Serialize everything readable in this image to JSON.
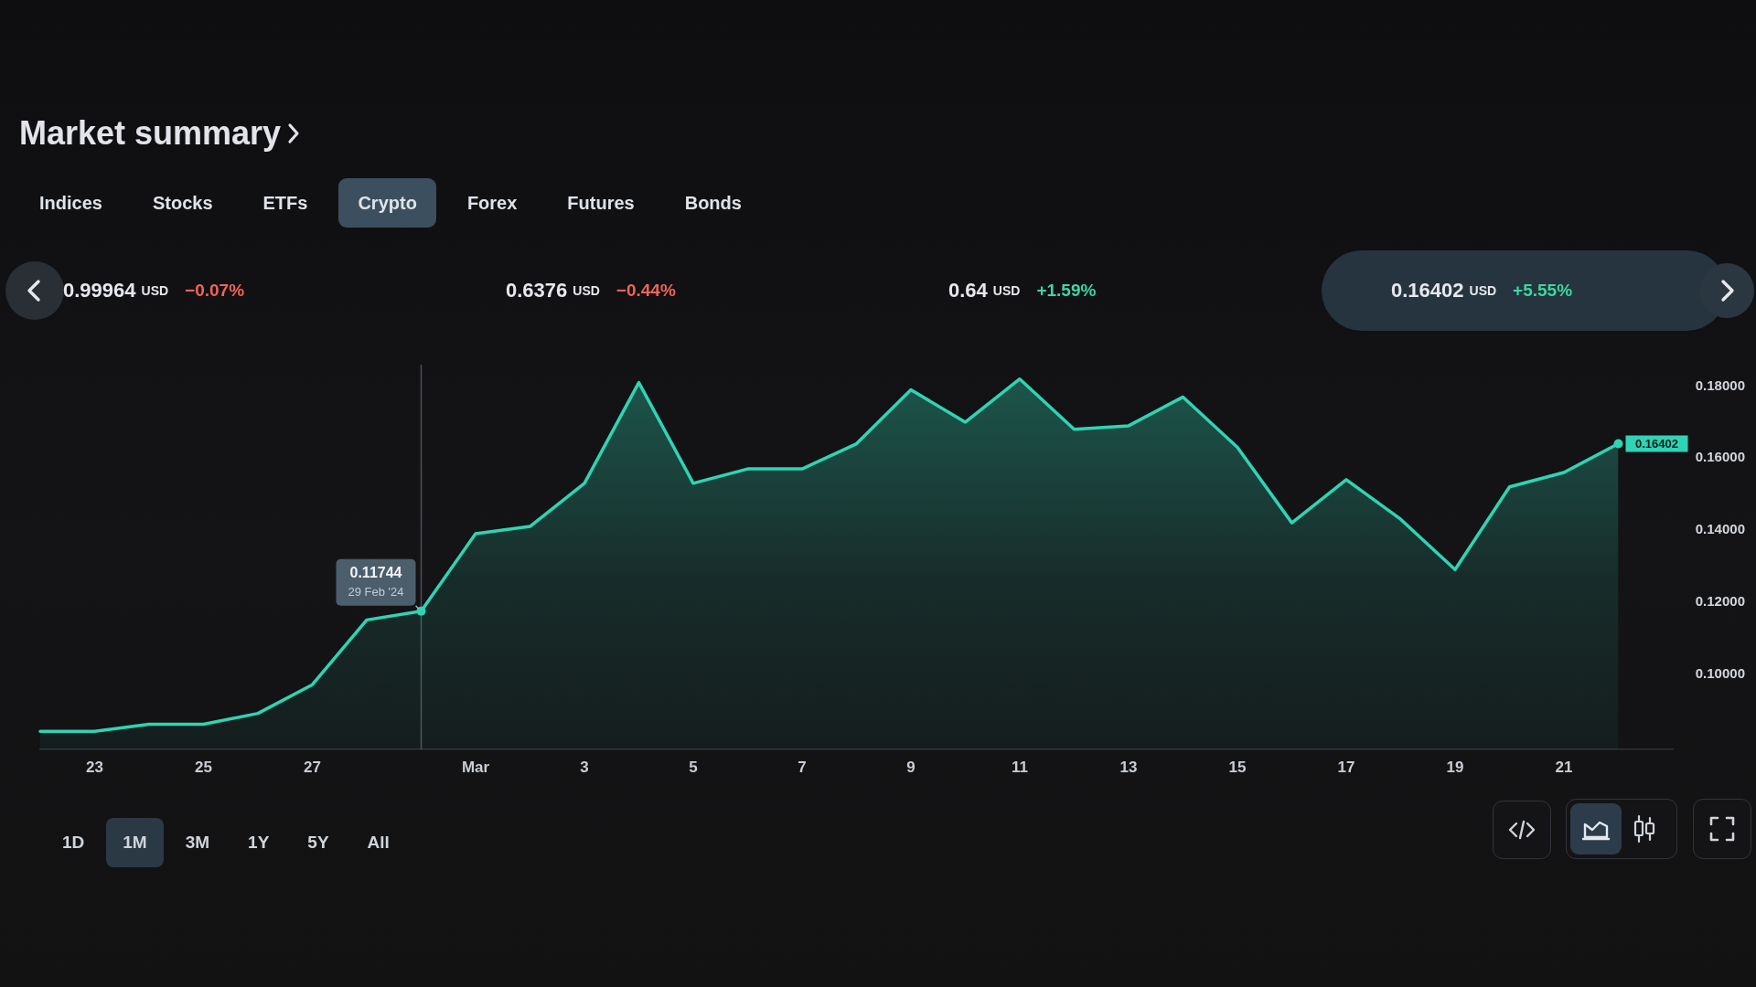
{
  "chart_data": [
    {
      "type": "other",
      "title": "Market summary",
      "categories": [
        "Indices",
        "Stocks",
        "ETFs",
        "Crypto",
        "Forex",
        "Futures",
        "Bonds"
      ],
      "annotations": [
        "0.99964 USD",
        "−0.07%",
        "0.6376 USD",
        "−0.44%",
        "0.64 USD",
        "+1.59%",
        "0.16402 USD",
        "+5.55%"
      ]
    },
    {
      "type": "area",
      "x": [
        "2024-02-22",
        "2024-02-23",
        "2024-02-24",
        "2024-02-25",
        "2024-02-26",
        "2024-02-27",
        "2024-02-28",
        "2024-02-29",
        "2024-03-01",
        "2024-03-02",
        "2024-03-03",
        "2024-03-04",
        "2024-03-05",
        "2024-03-06",
        "2024-03-07",
        "2024-03-08",
        "2024-03-09",
        "2024-03-10",
        "2024-03-11",
        "2024-03-12",
        "2024-03-13",
        "2024-03-14",
        "2024-03-15",
        "2024-03-16",
        "2024-03-17",
        "2024-03-18",
        "2024-03-19",
        "2024-03-20",
        "2024-03-21",
        "2024-03-22"
      ],
      "values": [
        0.084,
        0.084,
        0.086,
        0.086,
        0.089,
        0.097,
        0.115,
        0.11744,
        0.139,
        0.141,
        0.153,
        0.181,
        0.153,
        0.157,
        0.157,
        0.164,
        0.179,
        0.17,
        0.182,
        0.168,
        0.169,
        0.177,
        0.163,
        0.142,
        0.154,
        0.143,
        0.129,
        0.152,
        0.156,
        0.16402
      ],
      "color": "#2fd4b4",
      "value_labels": [
        null,
        null,
        null,
        null,
        null,
        null,
        null,
        null,
        null,
        null,
        null,
        null,
        null,
        null,
        null,
        null,
        null,
        null,
        null,
        null,
        null,
        null,
        null,
        null,
        null,
        null,
        null,
        null,
        null,
        "0.16402"
      ],
      "xlim": [
        "2024-02-22",
        "2024-03-23"
      ],
      "xticks": [
        {
          "value": "2024-02-23",
          "label": "23"
        },
        {
          "value": "2024-02-25",
          "label": "25"
        },
        {
          "value": "2024-02-27",
          "label": "27"
        },
        {
          "value": "2024-03-01",
          "label": "Mar"
        },
        {
          "value": "2024-03-03",
          "label": "3"
        },
        {
          "value": "2024-03-05",
          "label": "5"
        },
        {
          "value": "2024-03-07",
          "label": "7"
        },
        {
          "value": "2024-03-09",
          "label": "9"
        },
        {
          "value": "2024-03-11",
          "label": "11"
        },
        {
          "value": "2024-03-13",
          "label": "13"
        },
        {
          "value": "2024-03-15",
          "label": "15"
        },
        {
          "value": "2024-03-17",
          "label": "17"
        },
        {
          "value": "2024-03-19",
          "label": "19"
        },
        {
          "value": "2024-03-21",
          "label": "21"
        }
      ],
      "ylim": [
        0.079,
        0.186
      ],
      "yticks": [
        {
          "value": 0.1,
          "label": "0.10000"
        },
        {
          "value": 0.12,
          "label": "0.12000"
        },
        {
          "value": 0.14,
          "label": "0.14000"
        },
        {
          "value": 0.16,
          "label": "0.16000"
        },
        {
          "value": 0.18,
          "label": "0.18000"
        }
      ],
      "ref_lines": [
        {
          "axis": "x",
          "value": "2024-02-29",
          "color": "#4a4f57"
        }
      ],
      "annotations": [
        "1D",
        "1M",
        "3M",
        "1Y",
        "5Y",
        "All",
        {
          "text": "0.11744",
          "x": "2024-02-29",
          "y": 0.11744
        },
        {
          "text": "29 Feb '24",
          "x": "2024-02-29",
          "y": 0.11744
        }
      ]
    }
  ]
}
